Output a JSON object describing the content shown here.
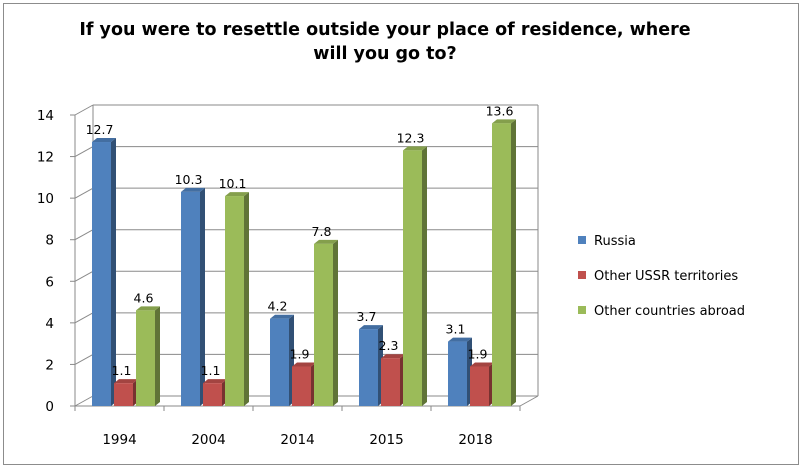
{
  "chart_data": {
    "type": "bar",
    "title_lines": [
      "If you were to resettle outside your place of residence, where",
      "will you go to?"
    ],
    "categories": [
      "1994",
      "2004",
      "2014",
      "2015",
      "2018"
    ],
    "series": [
      {
        "name": "Russia",
        "color": "#4f81bd",
        "values": [
          12.7,
          10.3,
          4.2,
          3.7,
          3.1
        ]
      },
      {
        "name": "Other USSR territories",
        "color": "#c0504d",
        "values": [
          1.1,
          1.1,
          1.9,
          2.3,
          1.9
        ]
      },
      {
        "name": "Other countries abroad",
        "color": "#9bbb59",
        "values": [
          4.6,
          10.1,
          7.8,
          12.3,
          13.6
        ]
      }
    ],
    "yticks": [
      0,
      2,
      4,
      6,
      8,
      10,
      12,
      14
    ],
    "ylim": [
      0,
      14
    ],
    "grid": true,
    "legend_position": "right",
    "chart_style": "3d-clustered-column"
  }
}
